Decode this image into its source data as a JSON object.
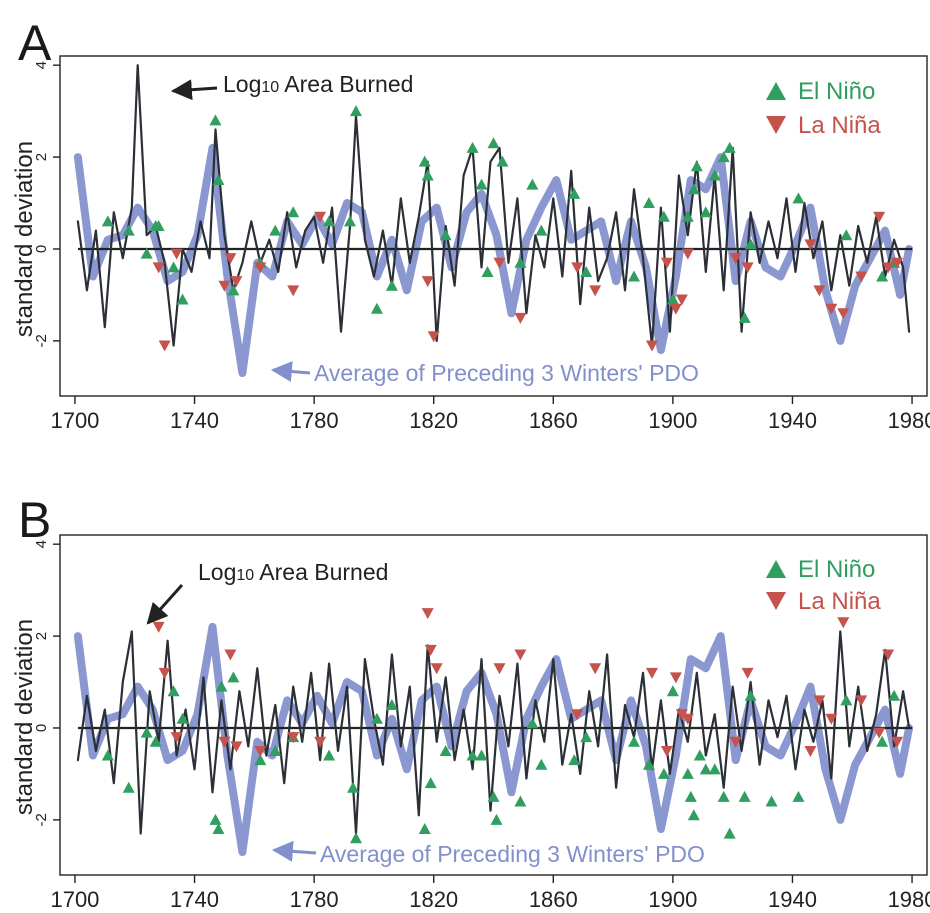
{
  "figure": {
    "colors": {
      "frame": "#222222",
      "fire_line": "#2b3036",
      "pdo_line": "#8a97d0",
      "el_nino": "#2f9e5f",
      "la_nina": "#c6524c",
      "zero_line": "#222222"
    }
  },
  "chart_data": [
    {
      "type": "line",
      "panel": "A",
      "ylabel": "standard deviation",
      "xlim": [
        1695,
        1985
      ],
      "ylim": [
        -3.2,
        4.2
      ],
      "x_ticks": [
        "1700",
        "1740",
        "1780",
        "1820",
        "1860",
        "1900",
        "1940",
        "1980"
      ],
      "y_ticks": [
        "4",
        "2",
        "0",
        "-2"
      ],
      "legend": {
        "position": "top-right",
        "el_nino": "El Niño",
        "la_nina": "La Niña"
      },
      "annotations": {
        "fire": "Log10 Area Burned",
        "fire_base": "Log",
        "fire_sub": "10",
        "fire_rest": " Area Burned",
        "pdo": "Average of Preceding 3 Winters' PDO"
      },
      "series": [
        {
          "name": "Log10 Area Burned",
          "role": "fire",
          "x": [
            1701,
            1704,
            1707,
            1710,
            1713,
            1716,
            1719,
            1721,
            1724,
            1727,
            1730,
            1733,
            1736,
            1739,
            1742,
            1745,
            1747,
            1750,
            1753,
            1756,
            1759,
            1762,
            1765,
            1768,
            1771,
            1774,
            1777,
            1780,
            1783,
            1786,
            1789,
            1792,
            1794,
            1797,
            1800,
            1803,
            1806,
            1809,
            1812,
            1815,
            1818,
            1821,
            1824,
            1827,
            1830,
            1833,
            1836,
            1839,
            1842,
            1845,
            1848,
            1851,
            1854,
            1857,
            1860,
            1863,
            1866,
            1869,
            1872,
            1875,
            1878,
            1881,
            1884,
            1887,
            1890,
            1893,
            1896,
            1899,
            1902,
            1905,
            1908,
            1911,
            1914,
            1917,
            1920,
            1923,
            1926,
            1929,
            1932,
            1935,
            1938,
            1941,
            1944,
            1947,
            1950,
            1953,
            1956,
            1959,
            1962,
            1965,
            1968,
            1971,
            1974,
            1977,
            1979
          ],
          "y": [
            0.6,
            -0.9,
            0.4,
            -1.7,
            0.8,
            -0.2,
            0.9,
            4.0,
            0.3,
            0.5,
            -0.3,
            -2.1,
            0.0,
            -0.5,
            0.6,
            -0.2,
            2.6,
            0.3,
            -0.9,
            -0.3,
            0.6,
            -0.3,
            0.2,
            -0.5,
            0.8,
            -0.4,
            0.4,
            0.7,
            -0.3,
            0.9,
            -1.8,
            0.5,
            2.9,
            0.2,
            -0.6,
            0.4,
            -0.8,
            1.1,
            -0.3,
            0.7,
            1.9,
            -2.0,
            0.5,
            -0.8,
            1.6,
            2.2,
            -0.4,
            1.9,
            2.2,
            -0.3,
            1.1,
            -1.4,
            0.3,
            -0.4,
            1.1,
            -0.6,
            1.7,
            -1.2,
            0.9,
            -0.7,
            -0.2,
            0.8,
            -0.9,
            1.3,
            -0.2,
            -2.1,
            0.9,
            -1.8,
            1.6,
            0.3,
            1.9,
            -0.5,
            1.6,
            -0.9,
            2.2,
            -1.8,
            0.8,
            -0.3,
            0.6,
            -0.2,
            1.1,
            -0.5,
            1.0,
            -0.2,
            0.6,
            -0.9,
            0.3,
            -0.8,
            0.5,
            -0.3,
            0.7,
            -0.6,
            0.2,
            -0.4,
            -1.8
          ]
        },
        {
          "name": "Average of Preceding 3 Winters' PDO",
          "role": "pdo",
          "x": [
            1701,
            1706,
            1711,
            1716,
            1721,
            1726,
            1731,
            1736,
            1741,
            1746,
            1751,
            1756,
            1761,
            1766,
            1771,
            1776,
            1781,
            1786,
            1791,
            1796,
            1801,
            1806,
            1811,
            1816,
            1821,
            1826,
            1831,
            1836,
            1841,
            1846,
            1851,
            1856,
            1861,
            1866,
            1871,
            1876,
            1881,
            1886,
            1891,
            1896,
            1901,
            1906,
            1911,
            1916,
            1921,
            1926,
            1931,
            1936,
            1941,
            1946,
            1951,
            1956,
            1961,
            1966,
            1971,
            1976,
            1979
          ],
          "y": [
            2.0,
            -0.6,
            0.2,
            0.3,
            0.9,
            0.4,
            -0.7,
            -0.5,
            0.3,
            2.2,
            -0.6,
            -2.7,
            -0.3,
            -0.6,
            0.6,
            0.1,
            0.7,
            0.1,
            1.0,
            0.8,
            -0.6,
            0.2,
            -0.9,
            0.6,
            0.9,
            -0.4,
            0.8,
            1.2,
            0.3,
            -1.4,
            0.2,
            0.9,
            1.5,
            0.2,
            0.4,
            0.6,
            -0.7,
            0.6,
            -0.4,
            -2.2,
            -0.6,
            1.5,
            1.3,
            2.0,
            -0.7,
            0.6,
            -0.4,
            -0.6,
            0.1,
            0.9,
            -0.9,
            -2.0,
            -0.8,
            -0.2,
            0.4,
            -1.0,
            0.0
          ]
        },
        {
          "name": "El Niño",
          "role": "el",
          "x": [
            1711,
            1718,
            1724,
            1727,
            1728,
            1733,
            1736,
            1747,
            1748,
            1753,
            1762,
            1767,
            1773,
            1785,
            1792,
            1794,
            1801,
            1806,
            1817,
            1818,
            1824,
            1833,
            1836,
            1838,
            1840,
            1843,
            1849,
            1853,
            1856,
            1867,
            1871,
            1887,
            1892,
            1897,
            1900,
            1905,
            1907,
            1908,
            1911,
            1914,
            1917,
            1919,
            1924,
            1926,
            1942,
            1958,
            1970,
            1974
          ],
          "y": [
            0.6,
            0.4,
            -0.1,
            0.5,
            0.5,
            -0.4,
            -1.1,
            2.8,
            1.5,
            -0.9,
            -0.3,
            0.4,
            0.8,
            0.6,
            0.6,
            3.0,
            -1.3,
            -0.8,
            1.9,
            1.6,
            0.3,
            2.2,
            1.4,
            -0.5,
            2.3,
            1.9,
            -0.3,
            1.4,
            0.4,
            1.2,
            -0.5,
            -0.6,
            1.0,
            0.7,
            -1.1,
            0.7,
            1.3,
            1.8,
            0.8,
            1.6,
            2.0,
            2.2,
            -1.5,
            0.1,
            1.1,
            0.3,
            -0.6,
            -0.3
          ]
        },
        {
          "name": "La Niña",
          "role": "la",
          "x": [
            1728,
            1730,
            1734,
            1750,
            1752,
            1754,
            1762,
            1773,
            1782,
            1818,
            1820,
            1842,
            1849,
            1868,
            1874,
            1893,
            1898,
            1901,
            1903,
            1905,
            1921,
            1925,
            1946,
            1949,
            1953,
            1957,
            1963,
            1969,
            1972,
            1975
          ],
          "y": [
            -0.4,
            -2.1,
            -0.1,
            -0.8,
            -0.2,
            -0.7,
            -0.4,
            -0.9,
            0.7,
            -0.7,
            -1.9,
            -0.3,
            -1.5,
            -0.4,
            -0.9,
            -2.1,
            -0.3,
            -1.3,
            -1.1,
            -0.1,
            -0.2,
            -0.4,
            0.1,
            -0.9,
            -1.3,
            -1.4,
            -0.6,
            0.7,
            -0.4,
            -0.3
          ]
        }
      ]
    },
    {
      "type": "line",
      "panel": "B",
      "ylabel": "standard deviation",
      "xlim": [
        1695,
        1985
      ],
      "ylim": [
        -3.2,
        4.2
      ],
      "x_ticks": [
        "1700",
        "1740",
        "1780",
        "1820",
        "1860",
        "1900",
        "1940",
        "1980"
      ],
      "y_ticks": [
        "4",
        "2",
        "0",
        "-2"
      ],
      "legend": {
        "position": "top-right",
        "el_nino": "El Niño",
        "la_nina": "La Niña"
      },
      "annotations": {
        "fire": "Log10 Area Burned",
        "fire_base": "Log",
        "fire_sub": "10",
        "fire_rest": " Area Burned",
        "pdo": "Average of Preceding 3 Winters' PDO"
      },
      "series": [
        {
          "name": "Log10 Area Burned",
          "role": "fire",
          "x": [
            1701,
            1704,
            1707,
            1710,
            1713,
            1716,
            1719,
            1722,
            1725,
            1728,
            1731,
            1734,
            1737,
            1740,
            1743,
            1746,
            1749,
            1752,
            1755,
            1758,
            1761,
            1764,
            1767,
            1770,
            1773,
            1776,
            1779,
            1782,
            1785,
            1788,
            1791,
            1794,
            1797,
            1800,
            1803,
            1806,
            1809,
            1812,
            1815,
            1818,
            1821,
            1824,
            1827,
            1830,
            1833,
            1836,
            1839,
            1842,
            1845,
            1848,
            1851,
            1854,
            1857,
            1860,
            1863,
            1866,
            1869,
            1872,
            1875,
            1878,
            1881,
            1884,
            1887,
            1890,
            1893,
            1896,
            1899,
            1902,
            1905,
            1908,
            1911,
            1914,
            1917,
            1920,
            1923,
            1926,
            1929,
            1932,
            1935,
            1938,
            1941,
            1944,
            1947,
            1950,
            1953,
            1956,
            1959,
            1962,
            1965,
            1968,
            1971,
            1974,
            1977,
            1979
          ],
          "y": [
            -0.7,
            0.7,
            -0.5,
            0.4,
            -1.2,
            1.0,
            2.1,
            -2.3,
            0.8,
            -0.3,
            1.9,
            -0.6,
            0.4,
            -0.9,
            1.1,
            -1.4,
            0.6,
            -0.9,
            0.8,
            -0.4,
            1.3,
            -0.6,
            0.5,
            -1.2,
            0.9,
            -0.3,
            1.2,
            -0.7,
            1.4,
            -0.5,
            0.9,
            -2.3,
            1.5,
            0.2,
            -0.8,
            1.6,
            -0.4,
            0.9,
            -1.9,
            1.8,
            -0.3,
            1.1,
            -0.7,
            0.4,
            -0.9,
            1.5,
            -1.8,
            0.7,
            -0.4,
            1.4,
            -1.1,
            0.6,
            -0.3,
            1.5,
            -0.8,
            0.3,
            -1.0,
            0.8,
            -0.4,
            1.6,
            -1.3,
            0.5,
            -0.2,
            1.2,
            -0.9,
            0.6,
            -1.0,
            0.4,
            -0.3,
            1.2,
            -0.6,
            0.3,
            -1.3,
            0.9,
            -0.5,
            1.0,
            -0.8,
            0.6,
            -0.2,
            0.7,
            -0.9,
            0.4,
            -0.3,
            0.6,
            -1.1,
            2.1,
            -0.4,
            0.9,
            -0.5,
            0.3,
            1.7,
            -0.4,
            0.8,
            0.0
          ]
        },
        {
          "name": "Average of Preceding 3 Winters' PDO",
          "role": "pdo",
          "x": [
            1701,
            1706,
            1711,
            1716,
            1721,
            1726,
            1731,
            1736,
            1741,
            1746,
            1751,
            1756,
            1761,
            1766,
            1771,
            1776,
            1781,
            1786,
            1791,
            1796,
            1801,
            1806,
            1811,
            1816,
            1821,
            1826,
            1831,
            1836,
            1841,
            1846,
            1851,
            1856,
            1861,
            1866,
            1871,
            1876,
            1881,
            1886,
            1891,
            1896,
            1901,
            1906,
            1911,
            1916,
            1921,
            1926,
            1931,
            1936,
            1941,
            1946,
            1951,
            1956,
            1961,
            1966,
            1971,
            1976,
            1979
          ],
          "y": [
            2.0,
            -0.6,
            0.2,
            0.3,
            0.9,
            0.4,
            -0.7,
            -0.5,
            0.3,
            2.2,
            -0.6,
            -2.7,
            -0.3,
            -0.6,
            0.6,
            0.1,
            0.7,
            0.1,
            1.0,
            0.8,
            -0.6,
            0.2,
            -0.9,
            0.6,
            0.9,
            -0.4,
            0.8,
            1.2,
            0.3,
            -1.4,
            0.2,
            0.9,
            1.5,
            0.2,
            0.4,
            0.6,
            -0.7,
            0.6,
            -0.4,
            -2.2,
            -0.6,
            1.5,
            1.3,
            2.0,
            -0.7,
            0.6,
            -0.4,
            -0.6,
            0.1,
            0.9,
            -0.9,
            -2.0,
            -0.8,
            -0.2,
            0.4,
            -1.0,
            0.0
          ]
        },
        {
          "name": "El Niño",
          "role": "el",
          "x": [
            1711,
            1718,
            1724,
            1727,
            1733,
            1736,
            1747,
            1748,
            1749,
            1753,
            1762,
            1767,
            1773,
            1785,
            1793,
            1794,
            1801,
            1806,
            1817,
            1819,
            1824,
            1833,
            1836,
            1840,
            1841,
            1849,
            1853,
            1856,
            1867,
            1871,
            1887,
            1892,
            1897,
            1900,
            1905,
            1906,
            1907,
            1909,
            1911,
            1914,
            1917,
            1919,
            1924,
            1926,
            1933,
            1942,
            1958,
            1970,
            1974
          ],
          "y": [
            -0.6,
            -1.3,
            -0.1,
            -0.3,
            0.8,
            0.2,
            -2.0,
            -2.2,
            0.9,
            1.1,
            -0.7,
            -0.5,
            -0.2,
            -0.6,
            -1.3,
            -2.4,
            0.2,
            0.5,
            -2.2,
            -1.2,
            -0.5,
            -0.6,
            -0.6,
            -1.5,
            -2.0,
            -1.6,
            0.1,
            -0.8,
            -0.7,
            -0.2,
            -0.3,
            -0.8,
            -1.0,
            0.8,
            -1.0,
            -1.5,
            -1.9,
            -0.6,
            -0.9,
            -0.9,
            -1.5,
            -2.3,
            -1.5,
            0.7,
            -1.6,
            -1.5,
            0.6,
            -0.3,
            0.7
          ]
        },
        {
          "name": "La Niña",
          "role": "la",
          "x": [
            1728,
            1730,
            1734,
            1750,
            1752,
            1754,
            1762,
            1773,
            1782,
            1818,
            1819,
            1821,
            1842,
            1849,
            1868,
            1874,
            1893,
            1898,
            1901,
            1903,
            1905,
            1921,
            1925,
            1946,
            1949,
            1953,
            1957,
            1963,
            1969,
            1972,
            1975
          ],
          "y": [
            2.2,
            1.2,
            -0.2,
            -0.3,
            1.6,
            -0.4,
            -0.5,
            -0.2,
            -0.3,
            2.5,
            1.7,
            1.3,
            1.3,
            1.6,
            0.3,
            1.3,
            1.2,
            -0.5,
            1.1,
            0.3,
            0.2,
            -0.3,
            1.2,
            -0.5,
            0.6,
            0.2,
            2.3,
            0.6,
            -0.1,
            1.6,
            -0.3
          ]
        }
      ]
    }
  ]
}
